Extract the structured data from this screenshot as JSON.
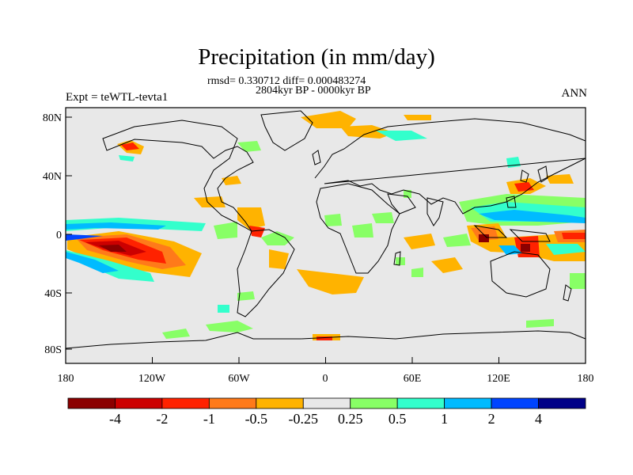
{
  "title": "Precipitation (in mm/day)",
  "stats_line": "rmsd= 0.330712 diff= 0.000483274",
  "period_line": "2804kyr BP - 0000kyr BP",
  "expt_label": "Expt = teWTL-tevta1",
  "season_label": "ANN",
  "lon_ticks": [
    "180",
    "120W",
    "60W",
    "0",
    "60E",
    "120E",
    "180"
  ],
  "lat_ticks": [
    "80N",
    "40N",
    "0",
    "40S",
    "80S"
  ],
  "colorbar": {
    "colors": [
      "#8b0000",
      "#cc0000",
      "#ff2200",
      "#ff7a1a",
      "#ffb300",
      "#e8e8e8",
      "#88ff66",
      "#33ffcc",
      "#00bbff",
      "#0044ff",
      "#000088"
    ],
    "labels": [
      "-4",
      "-2",
      "-1",
      "-0.5",
      "-0.25",
      "0.25",
      "0.5",
      "1",
      "2",
      "4"
    ]
  },
  "background_color": "#e8e8e8"
}
